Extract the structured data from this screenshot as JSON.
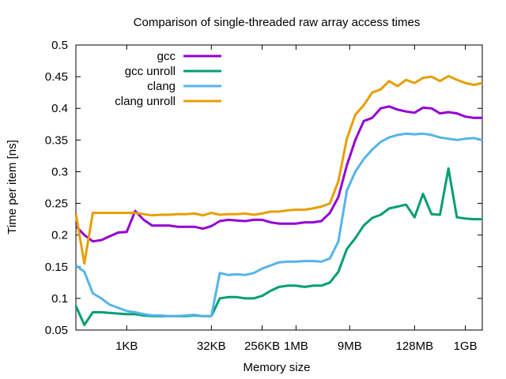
{
  "chart_data": {
    "type": "line",
    "title": "Comparison of single-threaded raw array access times",
    "xlabel": "Memory size",
    "ylabel": "Time per item [ns]",
    "xscale": "log2",
    "xlim_log2": [
      7,
      31
    ],
    "ylim": [
      0.05,
      0.5
    ],
    "yticks": [
      0.05,
      0.1,
      0.15,
      0.2,
      0.25,
      0.3,
      0.35,
      0.4,
      0.45,
      0.5
    ],
    "ytick_labels": [
      "0.05",
      "0.1",
      "0.15",
      "0.2",
      "0.25",
      "0.3",
      "0.35",
      "0.4",
      "0.45",
      "0.5"
    ],
    "xticks": [
      {
        "label": "1KB",
        "log2": 10
      },
      {
        "label": "32KB",
        "log2": 15
      },
      {
        "label": "256KB",
        "log2": 18
      },
      {
        "label": "1MB",
        "log2": 20
      },
      {
        "label": "9MB",
        "log2": 23.17
      },
      {
        "label": "128MB",
        "log2": 27
      },
      {
        "label": "1GB",
        "log2": 30
      }
    ],
    "grid": false,
    "legend_position": "top-left",
    "series": [
      {
        "name": "gcc",
        "color": "#9400d3",
        "x_log2": [
          7,
          7.5,
          8,
          8.5,
          9,
          9.5,
          10,
          10.5,
          11,
          11.5,
          12,
          12.5,
          13,
          13.5,
          14,
          14.5,
          15,
          15.5,
          16,
          16.5,
          17,
          17.5,
          18,
          18.5,
          19,
          19.5,
          20,
          20.5,
          21,
          21.5,
          22,
          22.5,
          23,
          23.5,
          24,
          24.5,
          25,
          25.5,
          26,
          26.5,
          27,
          27.5,
          28,
          28.5,
          29,
          29.5,
          30,
          30.5,
          31
        ],
        "values": [
          0.214,
          0.2,
          0.19,
          0.192,
          0.198,
          0.204,
          0.205,
          0.238,
          0.224,
          0.215,
          0.215,
          0.215,
          0.213,
          0.213,
          0.213,
          0.21,
          0.214,
          0.222,
          0.224,
          0.223,
          0.222,
          0.224,
          0.224,
          0.22,
          0.218,
          0.218,
          0.218,
          0.22,
          0.22,
          0.222,
          0.235,
          0.26,
          0.31,
          0.35,
          0.38,
          0.385,
          0.4,
          0.403,
          0.398,
          0.395,
          0.393,
          0.401,
          0.4,
          0.392,
          0.394,
          0.392,
          0.387,
          0.385,
          0.385
        ]
      },
      {
        "name": "gcc unroll",
        "color": "#009e73",
        "x_log2": [
          7,
          7.5,
          8,
          8.5,
          9,
          9.5,
          10,
          10.5,
          11,
          11.5,
          12,
          12.5,
          13,
          13.5,
          14,
          14.5,
          15,
          15.5,
          16,
          16.5,
          17,
          17.5,
          18,
          18.5,
          19,
          19.5,
          20,
          20.5,
          21,
          21.5,
          22,
          22.5,
          23,
          23.5,
          24,
          24.5,
          25,
          25.5,
          26,
          26.5,
          27,
          27.5,
          28,
          28.5,
          29,
          29.5,
          30,
          30.5,
          31
        ],
        "values": [
          0.088,
          0.058,
          0.078,
          0.078,
          0.077,
          0.076,
          0.075,
          0.075,
          0.073,
          0.072,
          0.072,
          0.072,
          0.072,
          0.072,
          0.073,
          0.072,
          0.072,
          0.1,
          0.102,
          0.102,
          0.1,
          0.1,
          0.104,
          0.112,
          0.118,
          0.12,
          0.12,
          0.118,
          0.12,
          0.12,
          0.125,
          0.142,
          0.178,
          0.195,
          0.215,
          0.227,
          0.232,
          0.242,
          0.245,
          0.248,
          0.228,
          0.265,
          0.233,
          0.232,
          0.305,
          0.228,
          0.226,
          0.225,
          0.225
        ]
      },
      {
        "name": "clang",
        "color": "#56b4e9",
        "x_log2": [
          7,
          7.5,
          8,
          8.5,
          9,
          9.5,
          10,
          10.5,
          11,
          11.5,
          12,
          12.5,
          13,
          13.5,
          14,
          14.5,
          15,
          15.5,
          16,
          16.5,
          17,
          17.5,
          18,
          18.5,
          19,
          19.5,
          20,
          20.5,
          21,
          21.5,
          22,
          22.5,
          23,
          23.5,
          24,
          24.5,
          25,
          25.5,
          26,
          26.5,
          27,
          27.5,
          28,
          28.5,
          29,
          29.5,
          30,
          30.5,
          31
        ],
        "values": [
          0.152,
          0.142,
          0.108,
          0.1,
          0.09,
          0.085,
          0.08,
          0.078,
          0.075,
          0.073,
          0.073,
          0.072,
          0.072,
          0.073,
          0.074,
          0.072,
          0.072,
          0.14,
          0.137,
          0.138,
          0.137,
          0.14,
          0.147,
          0.152,
          0.157,
          0.158,
          0.158,
          0.159,
          0.159,
          0.158,
          0.163,
          0.19,
          0.27,
          0.3,
          0.32,
          0.335,
          0.347,
          0.354,
          0.358,
          0.36,
          0.359,
          0.36,
          0.358,
          0.354,
          0.352,
          0.35,
          0.352,
          0.353,
          0.35
        ]
      },
      {
        "name": "clang unroll",
        "color": "#e69f00",
        "x_log2": [
          7,
          7.5,
          8,
          8.5,
          9,
          9.5,
          10,
          10.5,
          11,
          11.5,
          12,
          12.5,
          13,
          13.5,
          14,
          14.5,
          15,
          15.5,
          16,
          16.5,
          17,
          17.5,
          18,
          18.5,
          19,
          19.5,
          20,
          20.5,
          21,
          21.5,
          22,
          22.5,
          23,
          23.5,
          24,
          24.5,
          25,
          25.5,
          26,
          26.5,
          27,
          27.5,
          28,
          28.5,
          29,
          29.5,
          30,
          30.5,
          31
        ],
        "values": [
          0.233,
          0.155,
          0.235,
          0.235,
          0.235,
          0.235,
          0.235,
          0.235,
          0.233,
          0.231,
          0.232,
          0.232,
          0.233,
          0.233,
          0.234,
          0.231,
          0.235,
          0.232,
          0.233,
          0.233,
          0.234,
          0.232,
          0.234,
          0.237,
          0.237,
          0.239,
          0.24,
          0.24,
          0.242,
          0.245,
          0.25,
          0.285,
          0.352,
          0.39,
          0.405,
          0.425,
          0.43,
          0.443,
          0.435,
          0.445,
          0.44,
          0.448,
          0.45,
          0.443,
          0.451,
          0.445,
          0.44,
          0.437,
          0.44
        ]
      }
    ]
  }
}
